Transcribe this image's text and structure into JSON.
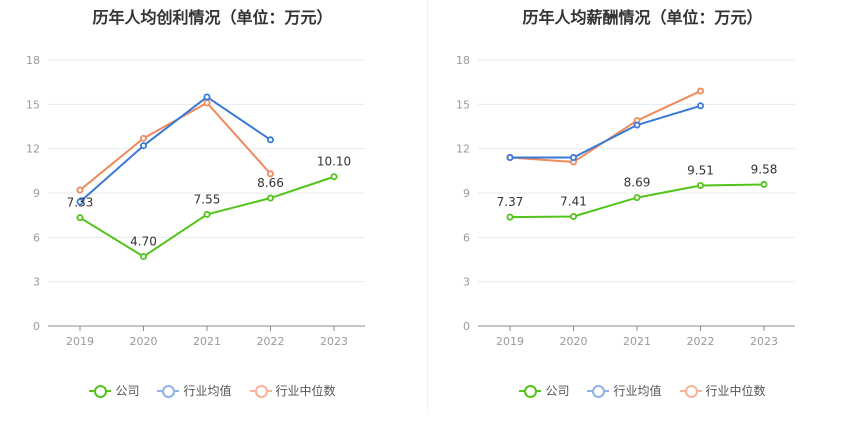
{
  "colors": {
    "company": "#52c41a",
    "industry_avg": "#3a78d8",
    "industry_median": "#ef8a5c",
    "legend_avg": "#8fb2ec",
    "legend_median": "#f5b59a",
    "grid": "#e6e9ee",
    "axis": "#9a9a9a",
    "label": "#333333"
  },
  "legend": {
    "company": "公司",
    "industry_avg": "行业均值",
    "industry_median": "行业中位数"
  },
  "chart_data": [
    {
      "type": "line",
      "title": "历年人均创利情况（单位：万元）",
      "categories": [
        "2019",
        "2020",
        "2021",
        "2022",
        "2023"
      ],
      "ylim": [
        0,
        18
      ],
      "yticks": [
        0,
        3,
        6,
        9,
        12,
        15,
        18
      ],
      "grid": true,
      "legend_position": "bottom",
      "series": [
        {
          "name": "公司",
          "key": "company",
          "values": [
            7.33,
            4.7,
            7.55,
            8.66,
            10.1
          ],
          "labels": [
            "7.33",
            "4.70",
            "7.55",
            "8.66",
            "10.10"
          ]
        },
        {
          "name": "行业均值",
          "key": "industry_avg",
          "values": [
            8.4,
            12.2,
            15.5,
            12.6,
            null
          ]
        },
        {
          "name": "行业中位数",
          "key": "industry_median",
          "values": [
            9.2,
            12.7,
            15.1,
            10.3,
            null
          ]
        }
      ]
    },
    {
      "type": "line",
      "title": "历年人均薪酬情况（单位：万元）",
      "categories": [
        "2019",
        "2020",
        "2021",
        "2022",
        "2023"
      ],
      "ylim": [
        0,
        18
      ],
      "yticks": [
        0,
        3,
        6,
        9,
        12,
        15,
        18
      ],
      "grid": true,
      "legend_position": "bottom",
      "series": [
        {
          "name": "公司",
          "key": "company",
          "values": [
            7.37,
            7.41,
            8.69,
            9.51,
            9.58
          ],
          "labels": [
            "7.37",
            "7.41",
            "8.69",
            "9.51",
            "9.58"
          ]
        },
        {
          "name": "行业均值",
          "key": "industry_avg",
          "values": [
            11.4,
            11.4,
            13.6,
            14.9,
            null
          ]
        },
        {
          "name": "行业中位数",
          "key": "industry_median",
          "values": [
            11.4,
            11.1,
            13.9,
            15.9,
            null
          ]
        }
      ]
    }
  ]
}
